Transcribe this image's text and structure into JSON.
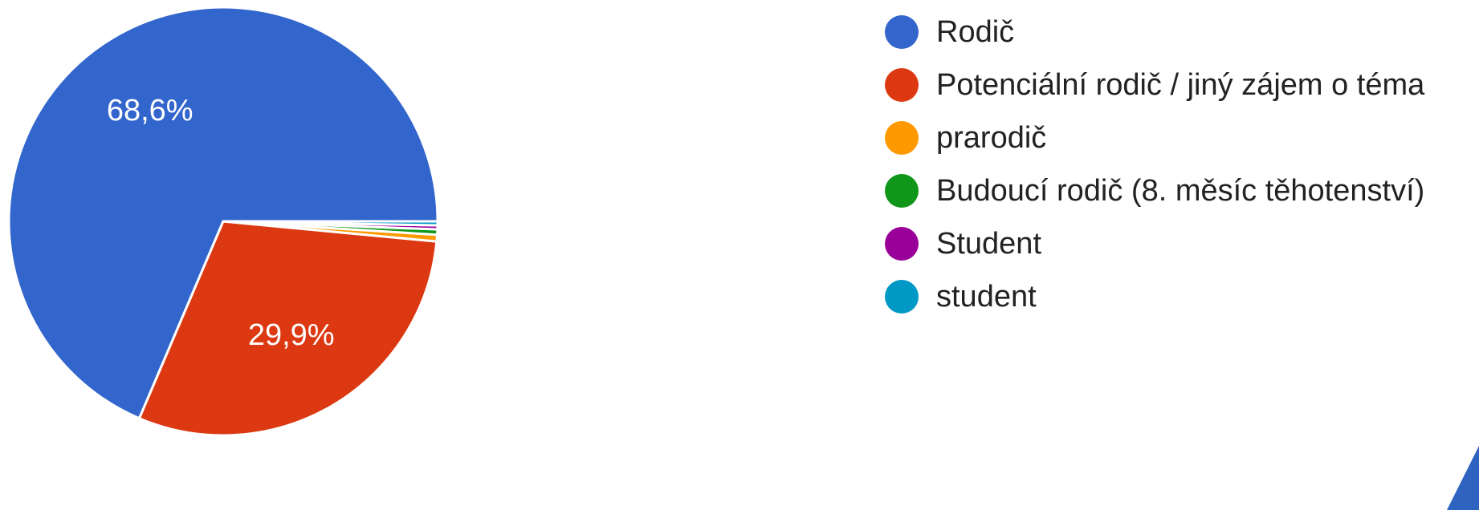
{
  "chart_data": {
    "type": "pie",
    "categories": [
      "Rodič",
      "Potenciální rodič / jiný zájem o téma",
      "prarodič",
      "Budoucí rodič (8. měsíc těhotenství)",
      "Student",
      "student"
    ],
    "values": [
      68.6,
      29.9,
      0.5,
      0.4,
      0.3,
      0.3
    ],
    "data_labels": [
      "68,6%",
      "29,9%",
      "",
      "",
      "",
      ""
    ],
    "colors": [
      "#3366cc",
      "#dc3912",
      "#ff9900",
      "#109618",
      "#990099",
      "#0099c6"
    ],
    "legend_position": "right",
    "start_direction": "3 o'clock, counter-clockwise"
  },
  "decor": {
    "corner_accent_color": "#2f63c0"
  }
}
